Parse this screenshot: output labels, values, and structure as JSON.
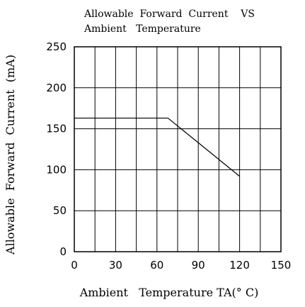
{
  "chart_data": {
    "type": "line",
    "title_lines": [
      "Allowable  Forward  Current    VS",
      "Ambient   Temperature"
    ],
    "xlabel": "Ambient   Temperature TA(° C)",
    "ylabel": "Allowable  Forward  Current  (mA)",
    "xlim": [
      0,
      150
    ],
    "ylim": [
      0,
      250
    ],
    "x_ticks": [
      "0",
      "30",
      "60",
      "90",
      "120",
      "150"
    ],
    "y_ticks": [
      "250",
      "200",
      "150",
      "100",
      "50",
      "0"
    ],
    "grid": true,
    "series": [
      {
        "x": [
          0,
          68,
          120
        ],
        "y": [
          163,
          163,
          92
        ]
      }
    ],
    "colors": {
      "line": "#000000",
      "grid": "#000000",
      "background": "#ffffff"
    }
  }
}
